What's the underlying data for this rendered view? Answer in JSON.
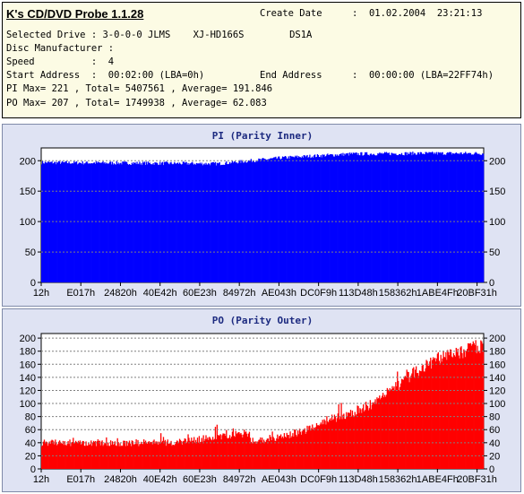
{
  "app_title": "K's CD/DVD Probe 1.1.28",
  "info": {
    "create_date_label": "Create Date",
    "create_date_value": ":  01.02.2004  23:21:13",
    "selected_drive": "Selected Drive : 3-0-0-0 JLMS    XJ-HD166S        DS1A",
    "disc_manufacturer": "Disc Manufacturer :",
    "speed": "Speed          :  4",
    "start_address": "Start Address  :  00:02:00 (LBA=0h)",
    "end_address_label": "End Address",
    "end_address_value": ":  00:00:00 (LBA=22FF74h)",
    "pi_stats": "PI Max= 221 , Total= 5407561 , Average= 191.846",
    "po_stats": "PO Max= 207 , Total= 1749938 , Average= 62.083"
  },
  "chart_data": [
    {
      "type": "bar",
      "title": "PI (Parity Inner)",
      "color": "#0000ff",
      "ylim": [
        0,
        221
      ],
      "y_ticks": [
        0,
        50,
        100,
        150,
        200
      ],
      "x_ticks": [
        "12h",
        "E017h",
        "24820h",
        "40E42h",
        "60E23h",
        "84972h",
        "AE043h",
        "DC0F9h",
        "113D48h",
        "158362h",
        "1ABE4Fh",
        "20BF31h"
      ],
      "grid": true,
      "profile": {
        "x": [
          0,
          0.2,
          0.4,
          0.55,
          0.7,
          0.85,
          1.0
        ],
        "y": [
          197,
          196,
          195,
          205,
          211,
          212,
          212
        ]
      }
    },
    {
      "type": "bar",
      "title": "PO (Parity Outer)",
      "color": "#ff0000",
      "ylim": [
        0,
        207
      ],
      "y_ticks": [
        0,
        20,
        40,
        60,
        80,
        100,
        120,
        140,
        160,
        180,
        200
      ],
      "x_ticks": [
        "12h",
        "E017h",
        "24820h",
        "40E42h",
        "60E23h",
        "84972h",
        "AE043h",
        "DC0F9h",
        "113D48h",
        "158362h",
        "1ABE4Fh",
        "20BF31h"
      ],
      "grid": true,
      "profile": {
        "x": [
          0,
          0.1,
          0.2,
          0.3,
          0.4,
          0.47,
          0.475,
          0.55,
          0.6,
          0.65,
          0.7,
          0.75,
          0.8,
          0.85,
          0.9,
          0.95,
          1.0
        ],
        "y": [
          40,
          40,
          40,
          40,
          50,
          55,
          42,
          50,
          60,
          75,
          85,
          100,
          125,
          150,
          170,
          180,
          190
        ]
      }
    }
  ]
}
